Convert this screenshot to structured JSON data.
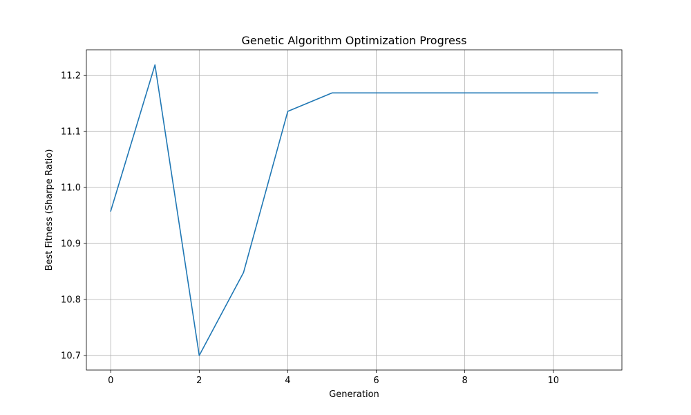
{
  "chart_data": {
    "type": "line",
    "title": "Genetic Algorithm Optimization Progress",
    "xlabel": "Generation",
    "ylabel": "Best Fitness (Sharpe Ratio)",
    "xlim": [
      -0.55,
      11.55
    ],
    "ylim": [
      10.674,
      11.246
    ],
    "xticks": [
      0,
      2,
      4,
      6,
      8,
      10
    ],
    "yticks": [
      10.7,
      10.8,
      10.9,
      11.0,
      11.1,
      11.2
    ],
    "ytick_labels": [
      "10.7",
      "10.8",
      "10.9",
      "11.0",
      "11.1",
      "11.2"
    ],
    "grid": true,
    "series": [
      {
        "color": "#1f77b4",
        "x": [
          0,
          1,
          2,
          3,
          4,
          5,
          6,
          7,
          8,
          9,
          10,
          11
        ],
        "y": [
          10.958,
          11.219,
          10.7,
          10.848,
          11.136,
          11.169,
          11.169,
          11.169,
          11.169,
          11.169,
          11.169,
          11.169
        ]
      }
    ]
  }
}
